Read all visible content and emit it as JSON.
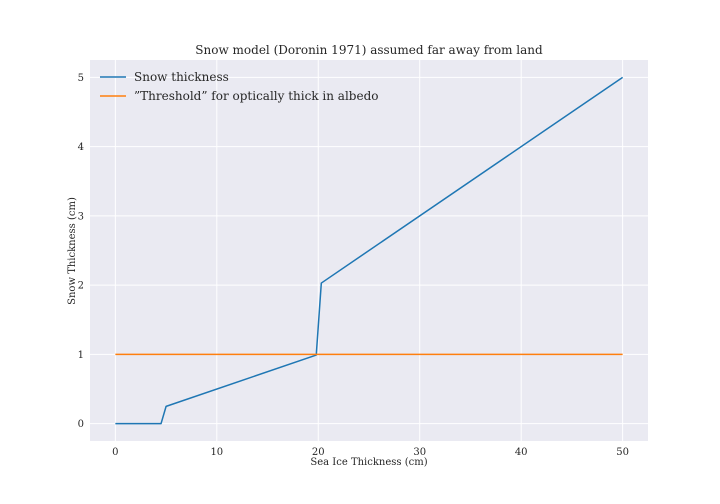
{
  "chart_data": {
    "type": "line",
    "title": "Snow model (Doronin 1971) assumed far away from land",
    "xlabel": "Sea Ice Thickness (cm)",
    "ylabel": "Snow Thickness (cm)",
    "xlim": [
      -2.5,
      52.5
    ],
    "ylim": [
      -0.25,
      5.25
    ],
    "xticks": [
      0,
      10,
      20,
      30,
      40,
      50
    ],
    "yticks": [
      0,
      1,
      2,
      3,
      4,
      5
    ],
    "grid": true,
    "legend_position": "top-left",
    "series": [
      {
        "name": "Snow thickness",
        "color": "#1f77b4",
        "x": [
          0,
          4.5,
          5,
          19.8,
          20.3,
          50
        ],
        "y": [
          0,
          0,
          0.25,
          0.99,
          2.03,
          5
        ]
      },
      {
        "name": "”Threshold” for optically thick in albedo",
        "color": "#ff7f0e",
        "x": [
          0,
          50
        ],
        "y": [
          1,
          1
        ]
      }
    ]
  }
}
